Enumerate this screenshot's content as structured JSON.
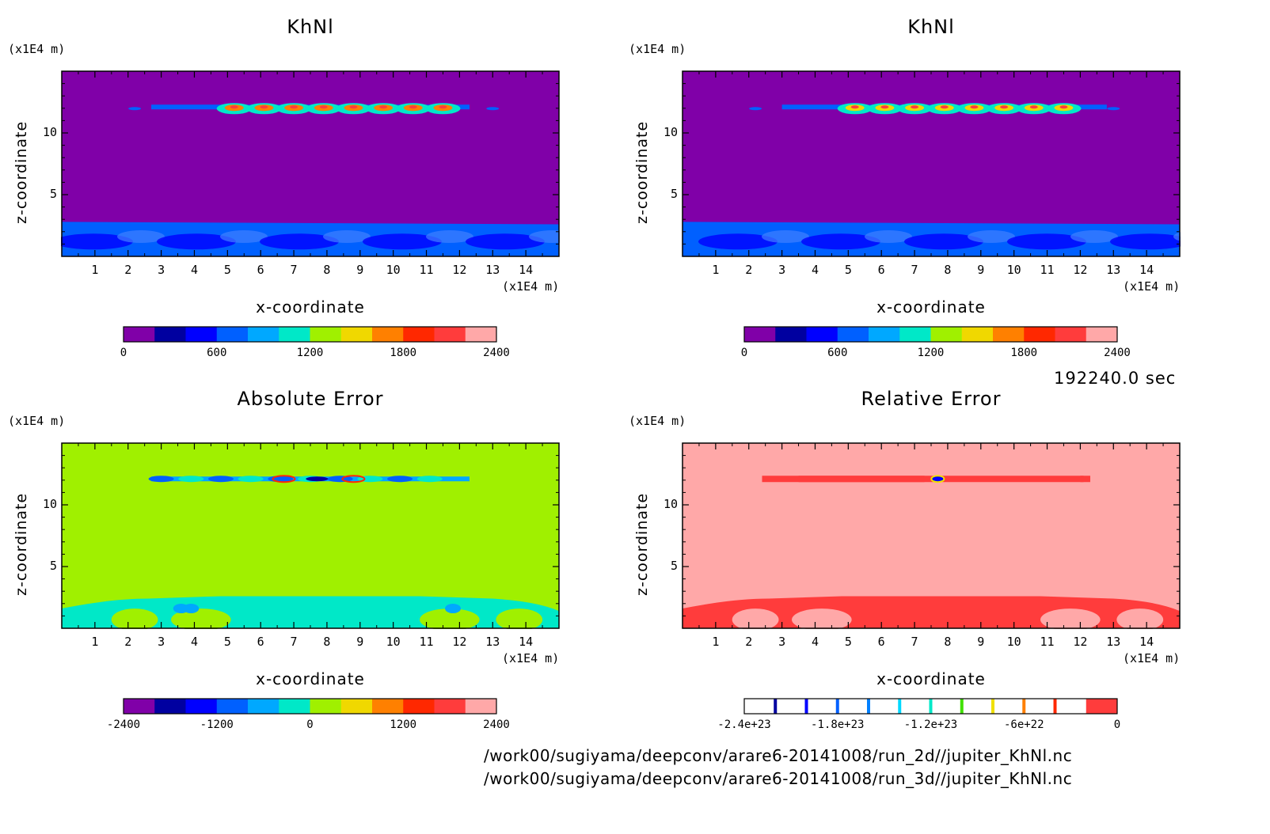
{
  "chart_data": [
    {
      "type": "heatmap",
      "title": "KhNl",
      "xlabel": "x-coordinate",
      "ylabel": "z-coordinate",
      "x_unit": "(x1E4 m)",
      "y_unit": "(x1E4 m)",
      "xticks": [
        "1",
        "2",
        "3",
        "4",
        "5",
        "6",
        "7",
        "8",
        "9",
        "10",
        "11",
        "12",
        "13",
        "14"
      ],
      "yticks": [
        "5",
        "10"
      ],
      "xlim": [
        0,
        15
      ],
      "ylim": [
        0,
        15
      ],
      "colorbar": {
        "ticks": [
          "0",
          "600",
          "1200",
          "1800",
          "2400"
        ],
        "levels": [
          0,
          200,
          400,
          600,
          800,
          1000,
          1200,
          1400,
          1600,
          1800,
          2000,
          2200,
          2400
        ],
        "colors": [
          "#8000a8",
          "#0000a0",
          "#0000ff",
          "#0060ff",
          "#00a8ff",
          "#00e8c8",
          "#a0f000",
          "#f0d800",
          "#ff8000",
          "#ff2800",
          "#ff3c3c",
          "#ffa8a8"
        ]
      }
    },
    {
      "type": "heatmap",
      "title": "KhNl",
      "xlabel": "x-coordinate",
      "ylabel": "z-coordinate",
      "x_unit": "(x1E4 m)",
      "y_unit": "(x1E4 m)",
      "xticks": [
        "1",
        "2",
        "3",
        "4",
        "5",
        "6",
        "7",
        "8",
        "9",
        "10",
        "11",
        "12",
        "13",
        "14"
      ],
      "yticks": [
        "5",
        "10"
      ],
      "xlim": [
        0,
        15
      ],
      "ylim": [
        0,
        15
      ],
      "colorbar": {
        "ticks": [
          "0",
          "600",
          "1200",
          "1800",
          "2400"
        ],
        "levels": [
          0,
          200,
          400,
          600,
          800,
          1000,
          1200,
          1400,
          1600,
          1800,
          2000,
          2200,
          2400
        ],
        "colors": [
          "#8000a8",
          "#0000a0",
          "#0000ff",
          "#0060ff",
          "#00a8ff",
          "#00e8c8",
          "#a0f000",
          "#f0d800",
          "#ff8000",
          "#ff2800",
          "#ff3c3c",
          "#ffa8a8"
        ]
      }
    },
    {
      "type": "heatmap",
      "title": "Absolute Error",
      "xlabel": "x-coordinate",
      "ylabel": "z-coordinate",
      "x_unit": "(x1E4 m)",
      "y_unit": "(x1E4 m)",
      "xticks": [
        "1",
        "2",
        "3",
        "4",
        "5",
        "6",
        "7",
        "8",
        "9",
        "10",
        "11",
        "12",
        "13",
        "14"
      ],
      "yticks": [
        "5",
        "10"
      ],
      "xlim": [
        0,
        15
      ],
      "ylim": [
        0,
        15
      ],
      "colorbar": {
        "ticks": [
          "-2400",
          "-1200",
          "0",
          "1200",
          "2400"
        ],
        "levels": [
          -2400,
          -2000,
          -1600,
          -1200,
          -800,
          -400,
          0,
          400,
          800,
          1200,
          1600,
          2000,
          2400
        ],
        "colors": [
          "#8000a8",
          "#0000a0",
          "#0000ff",
          "#0060ff",
          "#00a8ff",
          "#00e8c8",
          "#a0f000",
          "#f0d800",
          "#ff8000",
          "#ff2800",
          "#ff3c3c",
          "#ffa8a8"
        ]
      }
    },
    {
      "type": "heatmap",
      "title": "Relative Error",
      "xlabel": "x-coordinate",
      "ylabel": "z-coordinate",
      "x_unit": "(x1E4 m)",
      "y_unit": "(x1E4 m)",
      "xticks": [
        "1",
        "2",
        "3",
        "4",
        "5",
        "6",
        "7",
        "8",
        "9",
        "10",
        "11",
        "12",
        "13",
        "14"
      ],
      "yticks": [
        "5",
        "10"
      ],
      "xlim": [
        0,
        15
      ],
      "ylim": [
        0,
        15
      ],
      "colorbar": {
        "ticks": [
          "-2.4e+23",
          "-1.8e+23",
          "-1.2e+23",
          "-6e+22",
          "0"
        ],
        "levels": [
          -2.4e+23,
          -2.2e+23,
          -2e+23,
          -1.8e+23,
          -1.6e+23,
          -1.4e+23,
          -1.2e+23,
          -1e+23,
          -8e+22,
          -6e+22,
          -4e+22,
          -2e+22,
          0
        ],
        "colors": [
          "#ffffff",
          "#ffffff",
          "#ffffff",
          "#ffffff",
          "#ffffff",
          "#ffffff",
          "#ffffff",
          "#ffffff",
          "#ffffff",
          "#ffffff",
          "#ffffff",
          "#ff3c3c"
        ],
        "boundary_colors": [
          "#ffffff",
          "#0000a0",
          "#0000ff",
          "#0060ff",
          "#0080ff",
          "#00d8ff",
          "#00e8c8",
          "#40e000",
          "#f0e000",
          "#ff8000",
          "#ff2800",
          "#ff3c3c"
        ]
      }
    }
  ],
  "time_label": "192240.0 sec",
  "files": [
    "/work00/sugiyama/deepconv/arare6-20141008/run_2d//jupiter_KhNl.nc",
    "/work00/sugiyama/deepconv/arare6-20141008/run_3d//jupiter_KhNl.nc"
  ],
  "colors": {
    "purple_bg": "#8000a8",
    "green_bg": "#a0f000",
    "pink_bg": "#ffa8a8",
    "blue": "#0060ff",
    "cyan": "#00e8c8",
    "red": "#ff3c3c"
  }
}
